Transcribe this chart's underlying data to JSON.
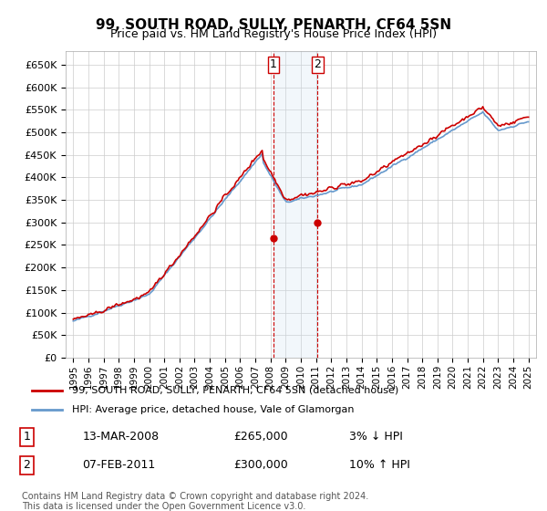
{
  "title": "99, SOUTH ROAD, SULLY, PENARTH, CF64 5SN",
  "subtitle": "Price paid vs. HM Land Registry's House Price Index (HPI)",
  "legend_line1": "99, SOUTH ROAD, SULLY, PENARTH, CF64 5SN (detached house)",
  "legend_line2": "HPI: Average price, detached house, Vale of Glamorgan",
  "transaction1_label": "1",
  "transaction1_date": "13-MAR-2008",
  "transaction1_price": "£265,000",
  "transaction1_hpi": "3% ↓ HPI",
  "transaction2_label": "2",
  "transaction2_date": "07-FEB-2011",
  "transaction2_price": "£300,000",
  "transaction2_hpi": "10% ↑ HPI",
  "footer": "Contains HM Land Registry data © Crown copyright and database right 2024.\nThis data is licensed under the Open Government Licence v3.0.",
  "hpi_color": "#6699cc",
  "price_color": "#cc0000",
  "marker_color": "#cc0000",
  "shading_color": "#cce0f0",
  "vline_color": "#cc0000",
  "grid_color": "#cccccc",
  "bg_color": "#ffffff",
  "ylim": [
    0,
    680000
  ],
  "yticks": [
    0,
    50000,
    100000,
    150000,
    200000,
    250000,
    300000,
    350000,
    400000,
    450000,
    500000,
    550000,
    600000,
    650000
  ],
  "transaction1_x": 2008.2,
  "transaction2_x": 2011.1
}
